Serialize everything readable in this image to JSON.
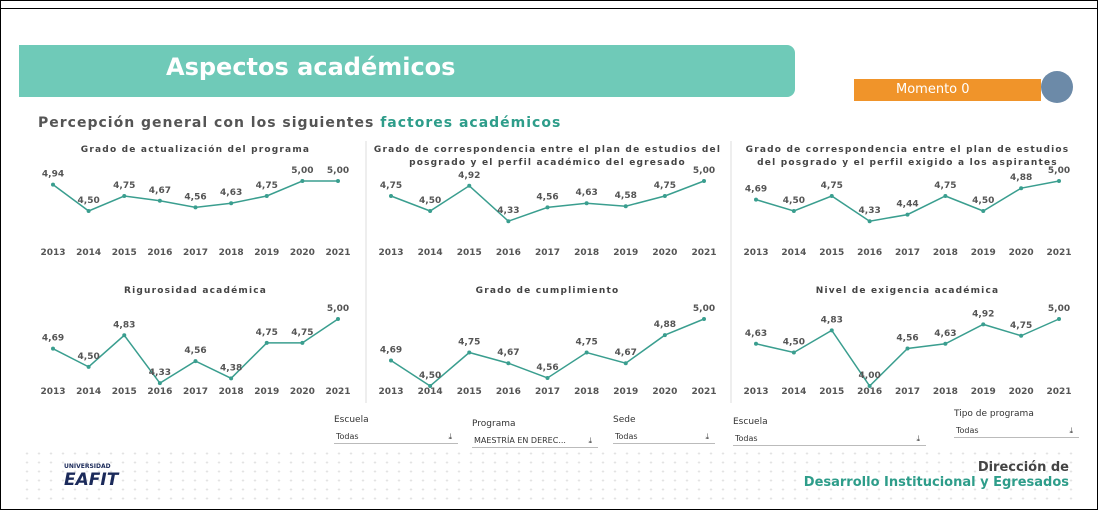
{
  "header": {
    "title": "Aspectos académicos",
    "badge": "Momento 0"
  },
  "subtitle": {
    "text": "Percepción general con los siguientes ",
    "highlight": "factores académicos"
  },
  "chart_data": [
    {
      "type": "line",
      "title": "Grado de actualización del programa",
      "categories": [
        "2013",
        "2014",
        "2015",
        "2016",
        "2017",
        "2018",
        "2019",
        "2020",
        "2021"
      ],
      "values": [
        4.94,
        4.5,
        4.75,
        4.67,
        4.56,
        4.63,
        4.75,
        5.0,
        5.0
      ],
      "value_labels": [
        "4,94",
        "4,50",
        "4,75",
        "4,67",
        "4,56",
        "4,63",
        "4,75",
        "5,00",
        "5,00"
      ],
      "ylim": [
        4.3,
        5.0
      ],
      "color": "#3a9e8f"
    },
    {
      "type": "line",
      "title": "Grado de correspondencia entre el plan de estudios del posgrado y el perfil académico del egresado",
      "categories": [
        "2013",
        "2014",
        "2015",
        "2016",
        "2017",
        "2018",
        "2019",
        "2020",
        "2021"
      ],
      "values": [
        4.75,
        4.5,
        4.92,
        4.33,
        4.56,
        4.63,
        4.58,
        4.75,
        5.0
      ],
      "value_labels": [
        "4,75",
        "4,50",
        "4,92",
        "4,33",
        "4,56",
        "4,63",
        "4,58",
        "4,75",
        "5,00"
      ],
      "ylim": [
        4.3,
        5.0
      ],
      "color": "#3a9e8f"
    },
    {
      "type": "line",
      "title": "Grado de correspondencia entre el plan de estudios del posgrado y el perfil exigido a los aspirantes",
      "categories": [
        "2013",
        "2014",
        "2015",
        "2016",
        "2017",
        "2018",
        "2019",
        "2020",
        "2021"
      ],
      "values": [
        4.69,
        4.5,
        4.75,
        4.33,
        4.44,
        4.75,
        4.5,
        4.88,
        5.0
      ],
      "value_labels": [
        "4,69",
        "4,50",
        "4,75",
        "4,33",
        "4,44",
        "4,75",
        "4,50",
        "4,88",
        "5,00"
      ],
      "ylim": [
        4.3,
        5.0
      ],
      "color": "#3a9e8f"
    },
    {
      "type": "line",
      "title": "Rigurosidad académica",
      "categories": [
        "2013",
        "2014",
        "2015",
        "2016",
        "2017",
        "2018",
        "2019",
        "2020",
        "2021"
      ],
      "values": [
        4.69,
        4.5,
        4.83,
        4.33,
        4.56,
        4.38,
        4.75,
        4.75,
        5.0
      ],
      "value_labels": [
        "4,69",
        "4,50",
        "4,83",
        "4,33",
        "4,56",
        "4,38",
        "4,75",
        "4,75",
        "5,00"
      ],
      "ylim": [
        4.3,
        5.0
      ],
      "color": "#3a9e8f"
    },
    {
      "type": "line",
      "title": "Grado de cumplimiento",
      "categories": [
        "2013",
        "2014",
        "2015",
        "2016",
        "2017",
        "2018",
        "2019",
        "2020",
        "2021"
      ],
      "values": [
        4.69,
        4.5,
        4.75,
        4.67,
        4.56,
        4.75,
        4.67,
        4.88,
        5.0
      ],
      "value_labels": [
        "4,69",
        "4,50",
        "4,75",
        "4,67",
        "4,56",
        "4,75",
        "4,67",
        "4,88",
        "5,00"
      ],
      "ylim": [
        4.5,
        5.0
      ],
      "color": "#3a9e8f"
    },
    {
      "type": "line",
      "title": "Nivel de exigencia académica",
      "categories": [
        "2013",
        "2014",
        "2015",
        "2016",
        "2017",
        "2018",
        "2019",
        "2020",
        "2021"
      ],
      "values": [
        4.63,
        4.5,
        4.83,
        4.0,
        4.56,
        4.63,
        4.92,
        4.75,
        5.0
      ],
      "value_labels": [
        "4,63",
        "4,50",
        "4,83",
        "4,00",
        "4,56",
        "4,63",
        "4,92",
        "4,75",
        "5,00"
      ],
      "ylim": [
        4.0,
        5.0
      ],
      "color": "#3a9e8f"
    }
  ],
  "filters": [
    {
      "label": "Escuela",
      "value": "Todas"
    },
    {
      "label": "Programa",
      "value": "MAESTRÍA EN DEREC..."
    },
    {
      "label": "Sede",
      "value": "Todas"
    },
    {
      "label": "Escuela",
      "value": "Todas"
    },
    {
      "label": "Tipo de programa",
      "value": "Todas"
    }
  ],
  "footer": {
    "logo_top": "UNIVERSIDAD",
    "logo": "EAFIT",
    "dept_top": "Dirección de",
    "dept": "Desarrollo Institucional y Egresados"
  }
}
